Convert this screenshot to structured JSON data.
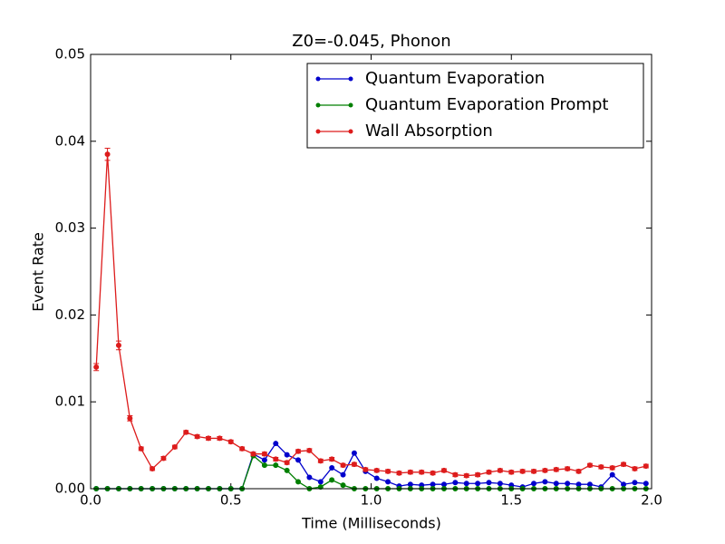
{
  "chart_data": {
    "type": "line",
    "title": "Z0=-0.045, Phonon",
    "xlabel": "Time (Milliseconds)",
    "ylabel": "Event Rate",
    "xlim": [
      0,
      2
    ],
    "ylim": [
      0,
      0.05
    ],
    "xticks": [
      {
        "value": 0,
        "label": "0.0"
      },
      0.5,
      {
        "value": 1,
        "label": "1.0"
      },
      1.5,
      {
        "value": 2,
        "label": "2.0"
      }
    ],
    "yticks": [
      {
        "value": 0,
        "label": "0.00"
      },
      0.01,
      0.02,
      0.03,
      0.04,
      0.05
    ],
    "legend": "upper right",
    "x": [
      0.02,
      0.06,
      0.1,
      0.14,
      0.18,
      0.22,
      0.26,
      0.3,
      0.34,
      0.38,
      0.42,
      0.46,
      0.5,
      0.54,
      0.58,
      0.62,
      0.66,
      0.7,
      0.74,
      0.78,
      0.82,
      0.86,
      0.9,
      0.94,
      0.98,
      1.02,
      1.06,
      1.1,
      1.14,
      1.18,
      1.22,
      1.26,
      1.3,
      1.34,
      1.38,
      1.42,
      1.46,
      1.5,
      1.54,
      1.58,
      1.62,
      1.66,
      1.7,
      1.74,
      1.78,
      1.82,
      1.86,
      1.9,
      1.94,
      1.98
    ],
    "series": [
      {
        "name": "Quantum Evaporation",
        "color": "#0000cc",
        "values": [
          0,
          0,
          0,
          0,
          0,
          0,
          0,
          0,
          0,
          0,
          0,
          0,
          0,
          0,
          0.004,
          0.0033,
          0.0052,
          0.0039,
          0.0033,
          0.0013,
          0.0008,
          0.0024,
          0.0016,
          0.0041,
          0.002,
          0.0012,
          0.0008,
          0.0003,
          0.0005,
          0.0004,
          0.0005,
          0.0005,
          0.0007,
          0.0006,
          0.0006,
          0.0007,
          0.0006,
          0.0004,
          0.0002,
          0.0006,
          0.0008,
          0.0006,
          0.0006,
          0.0005,
          0.0005,
          0.0002,
          0.0016,
          0.0005,
          0.0007,
          0.0006
        ]
      },
      {
        "name": "Quantum Evaporation Prompt",
        "color": "#007f00",
        "values": [
          0,
          0,
          0,
          0,
          0,
          0,
          0,
          0,
          0,
          0,
          0,
          0,
          0,
          0,
          0.0038,
          0.0027,
          0.0027,
          0.0021,
          0.0008,
          0,
          0.0002,
          0.001,
          0.0004,
          0,
          0,
          0,
          0,
          0,
          0,
          0,
          0,
          0,
          0,
          0,
          0,
          0,
          0,
          0,
          0,
          0,
          0,
          0,
          0,
          0,
          0,
          0,
          0,
          0,
          0,
          0
        ]
      },
      {
        "name": "Wall Absorption",
        "color": "#dd1c1c",
        "values": [
          0.014,
          0.0385,
          0.0165,
          0.0081,
          0.0046,
          0.0023,
          0.0035,
          0.0048,
          0.0065,
          0.006,
          0.0058,
          0.0058,
          0.0054,
          0.0046,
          0.004,
          0.004,
          0.0034,
          0.003,
          0.0043,
          0.0044,
          0.0032,
          0.0034,
          0.0027,
          0.0028,
          0.0022,
          0.0021,
          0.002,
          0.0018,
          0.0019,
          0.0019,
          0.0018,
          0.0021,
          0.0016,
          0.0015,
          0.0016,
          0.0019,
          0.0021,
          0.0019,
          0.002,
          0.002,
          0.0021,
          0.0022,
          0.0023,
          0.002,
          0.0027,
          0.0025,
          0.0024,
          0.0028,
          0.0023,
          0.0026
        ],
        "errors": [
          0.0004,
          0.0007,
          0.0005,
          0.0003,
          0.0002,
          0.0002,
          0.0002,
          0.0002,
          0.0002,
          0.0002,
          0.0002,
          0.0002,
          0.0002,
          0.0002,
          0.0002,
          0.0002,
          0.0002,
          0.0002,
          0.0002,
          0.0002,
          0.0002,
          0.0002,
          0.0002,
          0.0002,
          0.0002,
          0.0002,
          0.0002,
          0.0002,
          0.0002,
          0.0002,
          0.0002,
          0.0002,
          0.0002,
          0.0002,
          0.0002,
          0.0002,
          0.0002,
          0.0002,
          0.0002,
          0.0002,
          0.0002,
          0.0002,
          0.0002,
          0.0002,
          0.0002,
          0.0002,
          0.0002,
          0.0002,
          0.0002,
          0.0002
        ]
      }
    ]
  }
}
